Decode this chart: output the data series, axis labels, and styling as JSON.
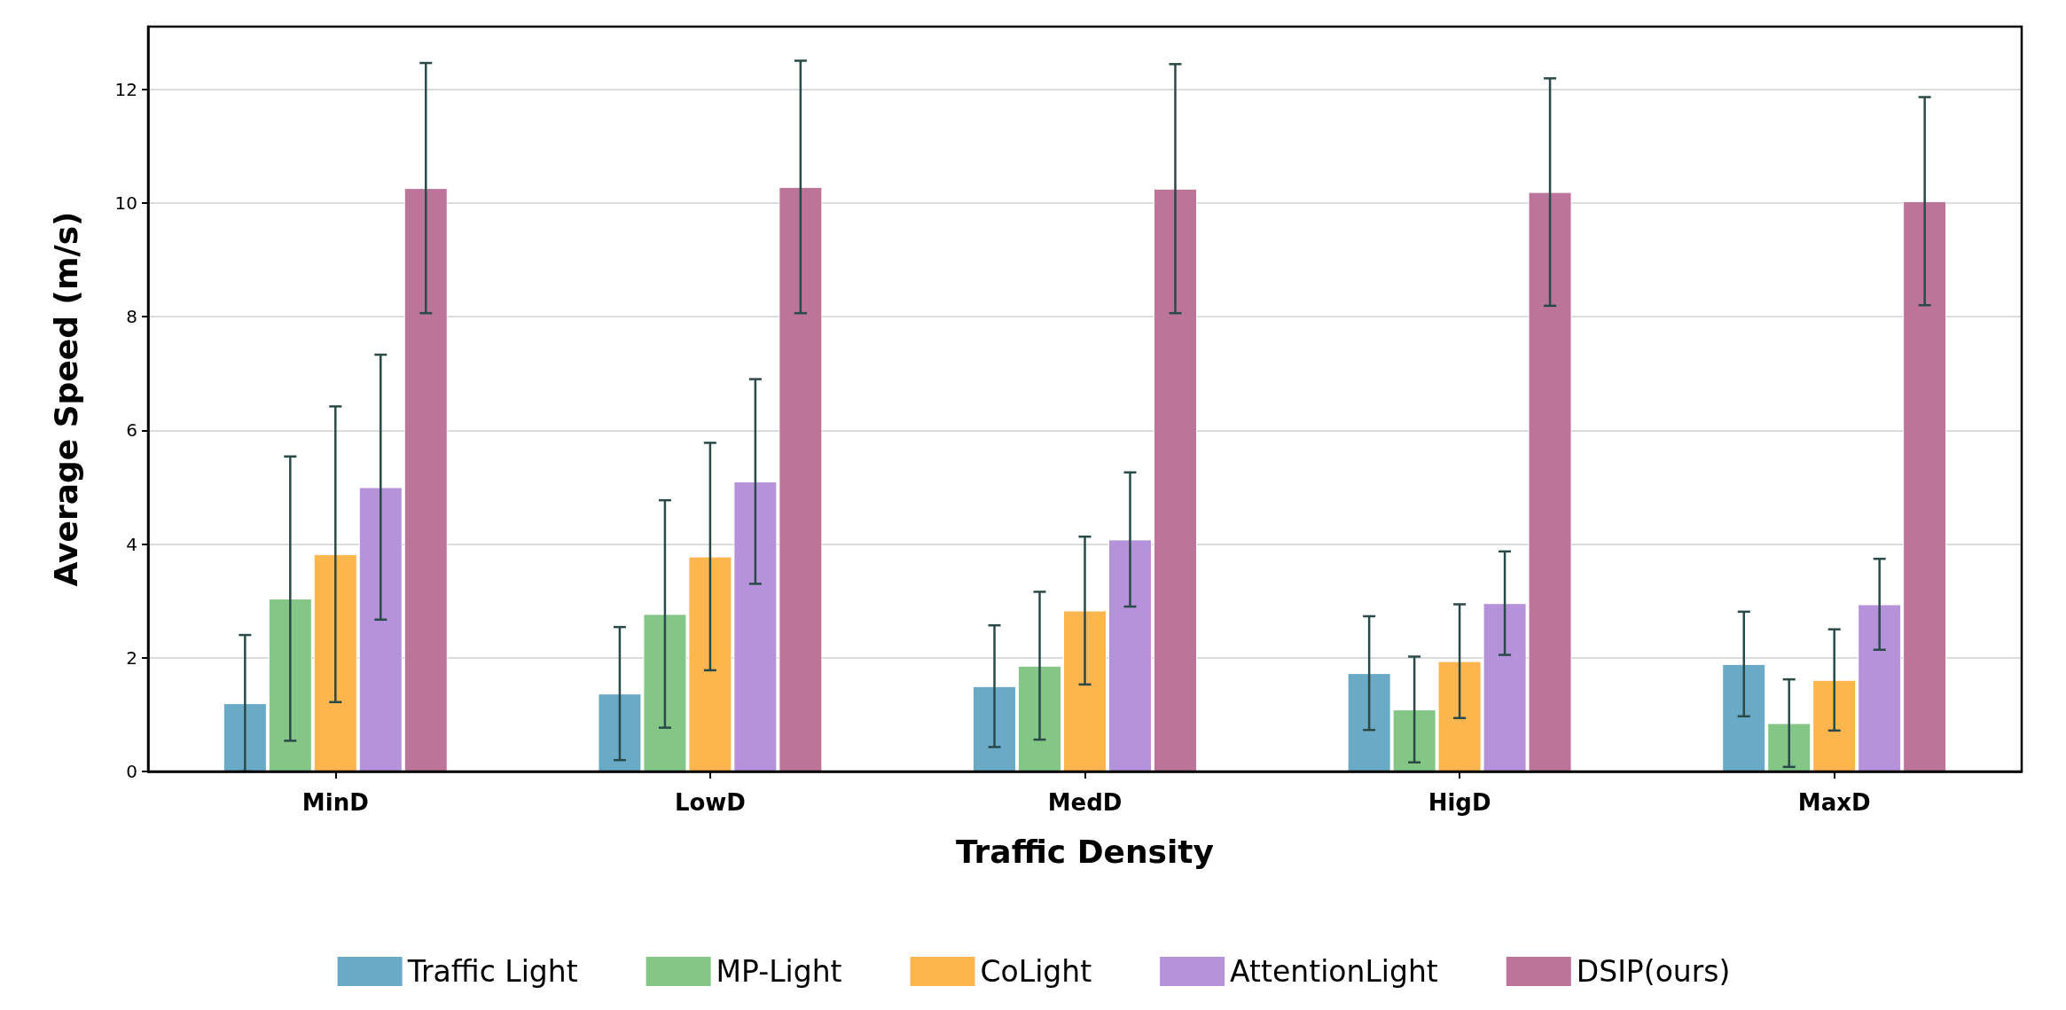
{
  "chart_data": {
    "type": "bar",
    "xlabel": "Traffic Density",
    "ylabel": "Average Speed (m/s)",
    "categories": [
      "MinD",
      "LowD",
      "MedD",
      "HigD",
      "MaxD"
    ],
    "series": [
      {
        "name": "Traffic Light",
        "color": "#6baac6",
        "values": [
          1.2,
          1.37,
          1.5,
          1.73,
          1.89
        ],
        "errors": [
          1.2,
          1.17,
          1.07,
          1.0,
          0.92
        ]
      },
      {
        "name": "MP-Light",
        "color": "#83c686",
        "values": [
          3.04,
          2.77,
          1.86,
          1.09,
          0.85
        ],
        "errors": [
          2.5,
          2.0,
          1.3,
          0.93,
          0.77
        ]
      },
      {
        "name": "CoLight",
        "color": "#fdb54e",
        "values": [
          3.82,
          3.78,
          2.83,
          1.94,
          1.61
        ],
        "errors": [
          2.6,
          2.0,
          1.3,
          1.0,
          0.89
        ]
      },
      {
        "name": "AttentionLight",
        "color": "#b692da",
        "values": [
          5.0,
          5.1,
          4.08,
          2.96,
          2.94
        ],
        "errors": [
          2.33,
          1.8,
          1.18,
          0.91,
          0.8
        ]
      },
      {
        "name": "DSIP(ours)",
        "color": "#bd7499",
        "values": [
          10.26,
          10.28,
          10.25,
          10.19,
          10.03
        ],
        "errors": [
          2.2,
          2.22,
          2.19,
          2.0,
          1.83
        ]
      }
    ],
    "ylim": [
      0,
      13.1
    ],
    "yticks": [
      0,
      2,
      4,
      6,
      8,
      10,
      12
    ],
    "grid": "y",
    "legend": "bottom"
  }
}
